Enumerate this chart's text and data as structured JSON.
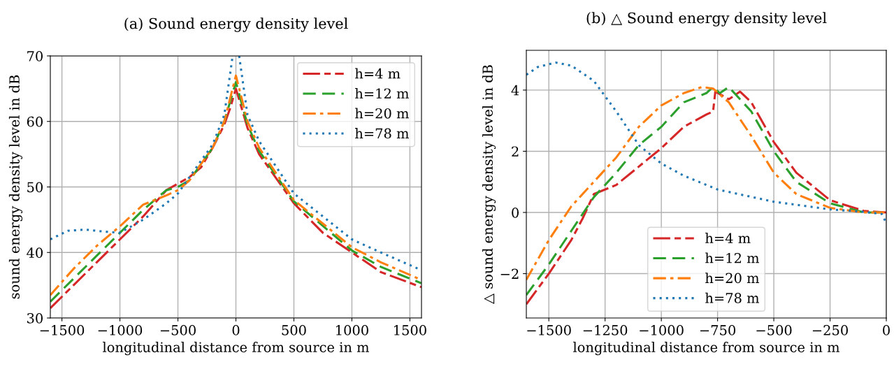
{
  "chart_data": [
    {
      "type": "line",
      "title": "(a) Sound energy density level",
      "xlabel": "longitudinal distance from source in m",
      "ylabel": "sound energy density level in dB",
      "xlim": [
        -1600,
        1600
      ],
      "xticks": [
        -1500,
        -1000,
        -500,
        0,
        500,
        1000,
        1500
      ],
      "ylim": [
        30,
        70
      ],
      "yticks": [
        30,
        40,
        50,
        60,
        70
      ],
      "grid": true,
      "legend": "top right",
      "series": [
        {
          "name": "h=4 m",
          "color": "#d62728",
          "line_style": "longdashdot",
          "x": [
            -1600,
            -1400,
            -1200,
            -1000,
            -800,
            -600,
            -400,
            -300,
            -200,
            -100,
            -50,
            0,
            50,
            100,
            200,
            300,
            500,
            750,
            1000,
            1250,
            1600
          ],
          "values": [
            31.5,
            35,
            38.5,
            42,
            45.5,
            49.5,
            51.5,
            53,
            56,
            59.5,
            62,
            65,
            62,
            59,
            55,
            52.5,
            47.5,
            43,
            40,
            37,
            34.7
          ]
        },
        {
          "name": "h=12 m",
          "color": "#2ca02c",
          "line_style": "dashed",
          "x": [
            -1600,
            -1400,
            -1200,
            -1000,
            -800,
            -600,
            -500,
            -400,
            -200,
            -100,
            0,
            100,
            200,
            500,
            1000,
            1250,
            1600
          ],
          "values": [
            32.5,
            36,
            39.5,
            43,
            46.5,
            49.5,
            50,
            51,
            56,
            60,
            66,
            59.5,
            55.5,
            47.8,
            40.3,
            37.8,
            35.3
          ]
        },
        {
          "name": "h=20 m",
          "color": "#ff7f0e",
          "line_style": "dashdot",
          "x": [
            -1600,
            -1400,
            -1200,
            -1000,
            -800,
            -600,
            -500,
            -400,
            -200,
            -100,
            0,
            100,
            200,
            500,
            1000,
            1250,
            1600
          ],
          "values": [
            33.5,
            37.5,
            41,
            44,
            47.3,
            48.7,
            49.5,
            51,
            56,
            60,
            67,
            60,
            56,
            48,
            40.8,
            38.5,
            35.8
          ]
        },
        {
          "name": "h=78 m",
          "color": "#1f77b4",
          "line_style": "dotted",
          "x": [
            -1600,
            -1450,
            -1300,
            -1150,
            -1000,
            -800,
            -600,
            -500,
            -400,
            -200,
            -100,
            -28,
            0,
            28,
            100,
            200,
            500,
            1000,
            1250,
            1600
          ],
          "values": [
            42,
            43.3,
            43.5,
            43.2,
            43,
            45,
            47.5,
            49,
            51.5,
            56.5,
            61,
            70,
            null,
            70,
            61,
            57,
            49,
            42,
            40,
            37.3
          ]
        }
      ]
    },
    {
      "type": "line",
      "title": "(b) △ Sound energy density level",
      "xlabel": "longitudinal distance from source in m",
      "ylabel": "△ sound energy density level in dB",
      "xlim": [
        -1600,
        0
      ],
      "xticks": [
        -1500,
        -1250,
        -1000,
        -750,
        -500,
        -250,
        0
      ],
      "ylim": [
        -3.45,
        5.3
      ],
      "yticks": [
        -2,
        0,
        2,
        4
      ],
      "grid": true,
      "legend": "bottom",
      "series": [
        {
          "name": "h=4 m",
          "color": "#d62728",
          "line_style": "longdashdot",
          "x": [
            -1600,
            -1500,
            -1400,
            -1350,
            -1300,
            -1200,
            -1100,
            -1000,
            -900,
            -800,
            -770,
            -760,
            -700,
            -650,
            -600,
            -500,
            -400,
            -250,
            -100,
            0
          ],
          "values": [
            -3.0,
            -2.0,
            -0.9,
            -0.2,
            0.6,
            0.9,
            1.5,
            2.1,
            2.8,
            3.2,
            3.3,
            3.95,
            3.7,
            3.95,
            3.6,
            2.3,
            1.3,
            0.4,
            0.05,
            0
          ]
        },
        {
          "name": "h=12 m",
          "color": "#2ca02c",
          "line_style": "dashed",
          "x": [
            -1600,
            -1500,
            -1400,
            -1300,
            -1200,
            -1100,
            -1000,
            -900,
            -800,
            -770,
            -740,
            -700,
            -650,
            -600,
            -500,
            -400,
            -250,
            -100,
            0
          ],
          "values": [
            -2.7,
            -1.7,
            -0.6,
            0.5,
            1.3,
            2.2,
            2.8,
            3.6,
            3.9,
            4.1,
            3.9,
            4.1,
            3.7,
            3.3,
            2.0,
            1.0,
            0.3,
            0.0,
            0
          ]
        },
        {
          "name": "h=20 m",
          "color": "#ff7f0e",
          "line_style": "dashdot",
          "x": [
            -1600,
            -1500,
            -1400,
            -1300,
            -1200,
            -1100,
            -1000,
            -900,
            -820,
            -770,
            -700,
            -600,
            -500,
            -400,
            -250,
            -100,
            0
          ],
          "values": [
            -2.2,
            -0.9,
            0.2,
            1.0,
            1.8,
            2.8,
            3.5,
            3.9,
            4.1,
            4.05,
            3.6,
            2.5,
            1.3,
            0.6,
            0.15,
            0,
            0
          ]
        },
        {
          "name": "h=78 m",
          "color": "#1f77b4",
          "line_style": "dotted",
          "x": [
            -1600,
            -1550,
            -1470,
            -1400,
            -1300,
            -1200,
            -1100,
            -1000,
            -900,
            -750,
            -500,
            -250,
            -100,
            -20,
            0
          ],
          "values": [
            4.5,
            4.75,
            4.9,
            4.8,
            4.3,
            3.3,
            2.2,
            1.6,
            1.2,
            0.75,
            0.35,
            0.1,
            0.02,
            -0.05,
            -0.35
          ]
        }
      ]
    }
  ]
}
